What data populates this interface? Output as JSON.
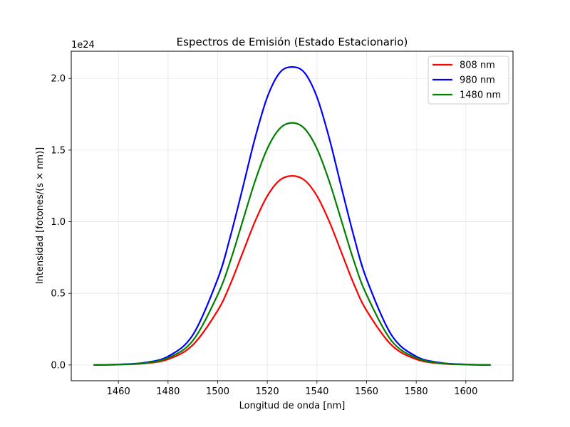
{
  "chart_data": {
    "type": "line",
    "title": "Espectros de Emisión (Estado Estacionario)",
    "xlabel": "Longitud de onda [nm]",
    "ylabel": "Intensidad [fotones/(s × nm)]",
    "y_offset_label": "1e24",
    "xlim": [
      1441,
      1619
    ],
    "ylim": [
      -0.11,
      2.19
    ],
    "x_ticks": [
      1460,
      1480,
      1500,
      1520,
      1540,
      1560,
      1580,
      1600
    ],
    "y_ticks": [
      0.0,
      0.5,
      1.0,
      1.5,
      2.0
    ],
    "y_tick_labels": [
      "0.0",
      "0.5",
      "1.0",
      "1.5",
      "2.0"
    ],
    "grid": true,
    "legend_position": "top-right",
    "x": [
      1450,
      1460,
      1470,
      1480,
      1490,
      1500,
      1505,
      1510,
      1515,
      1520,
      1525,
      1530,
      1535,
      1540,
      1545,
      1550,
      1555,
      1560,
      1570,
      1580,
      1590,
      1600,
      1610
    ],
    "series": [
      {
        "name": "808 nm",
        "color": "#ff0000",
        "values": [
          0.0,
          0.003,
          0.01,
          0.04,
          0.14,
          0.38,
          0.56,
          0.78,
          1.0,
          1.18,
          1.29,
          1.32,
          1.29,
          1.18,
          1.0,
          0.78,
          0.56,
          0.38,
          0.14,
          0.04,
          0.01,
          0.003,
          0.0
        ]
      },
      {
        "name": "980 nm",
        "color": "#0000ff",
        "values": [
          0.0,
          0.004,
          0.015,
          0.06,
          0.21,
          0.6,
          0.89,
          1.23,
          1.58,
          1.87,
          2.04,
          2.08,
          2.04,
          1.87,
          1.58,
          1.23,
          0.89,
          0.6,
          0.21,
          0.06,
          0.015,
          0.004,
          0.0
        ]
      },
      {
        "name": "1480 nm",
        "color": "#008000",
        "values": [
          0.0,
          0.003,
          0.012,
          0.05,
          0.17,
          0.49,
          0.72,
          1.0,
          1.28,
          1.51,
          1.65,
          1.69,
          1.65,
          1.51,
          1.28,
          1.0,
          0.72,
          0.49,
          0.17,
          0.05,
          0.012,
          0.003,
          0.0
        ]
      }
    ]
  }
}
